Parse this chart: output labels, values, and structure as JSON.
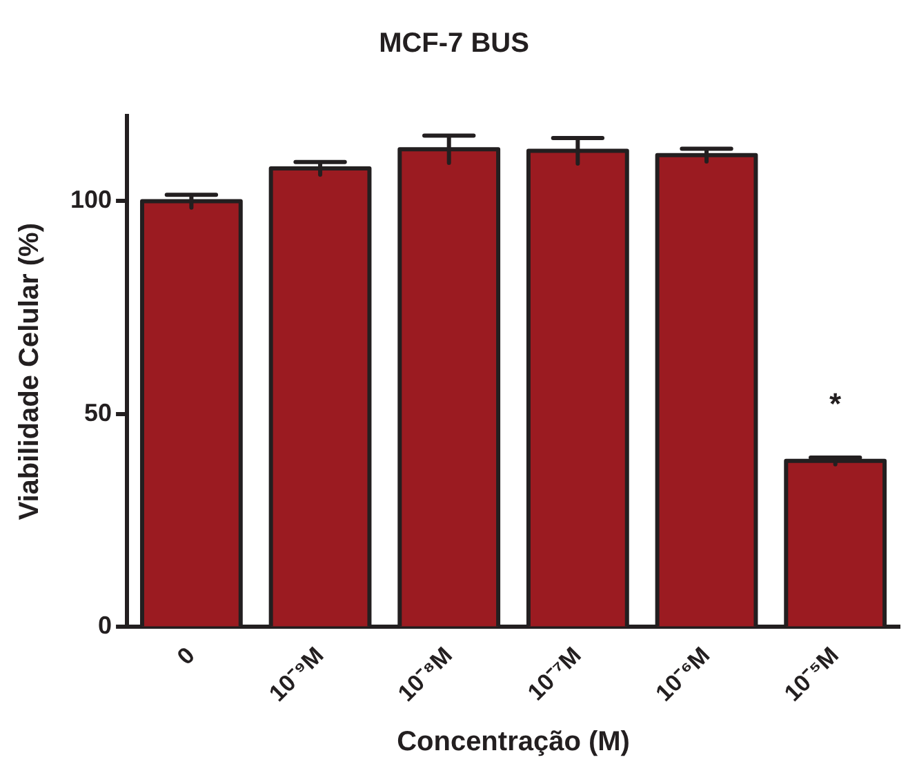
{
  "chart_data": {
    "type": "bar",
    "title": "MCF-7 BUS",
    "xlabel": "Concentração (M)",
    "ylabel": "Viabilidade Celular (%)",
    "categories": [
      "0",
      "10⁻⁹M",
      "10⁻⁸M",
      "10⁻⁷M",
      "10⁻⁶M",
      "10⁻⁵M"
    ],
    "values": [
      100,
      107.7,
      112.2,
      111.8,
      110.8,
      39
    ],
    "errors": [
      1.5,
      1.5,
      3.2,
      3,
      1.5,
      0.8
    ],
    "color": "#9b1b21",
    "ylim": [
      0,
      120
    ],
    "yticks": [
      0,
      50,
      100
    ],
    "grid": false,
    "legend": false,
    "annotations": [
      "*"
    ]
  }
}
